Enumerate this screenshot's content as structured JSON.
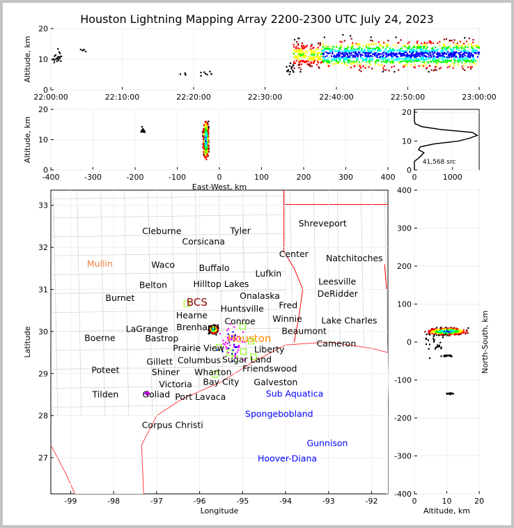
{
  "title": "Houston Lightning Mapping Array 2200-2300 UTC July 24, 2023",
  "chart_data": [
    {
      "id": "time_height",
      "type": "scatter",
      "ylabel": "Altitude, km",
      "ylim": [
        0,
        20
      ],
      "xlim_minutes": [
        0,
        60
      ],
      "xticks": [
        "22:00:00",
        "22:10:00",
        "22:20:00",
        "22:30:00",
        "22:40:00",
        "22:50:00",
        "23:00:00"
      ],
      "yticks": [
        0,
        10,
        20
      ],
      "clusters": [
        {
          "t": [
            34,
            60
          ],
          "alt": 11.5,
          "spread": 2.2,
          "n": 1400,
          "core": true
        },
        {
          "t": [
            0,
            1.5
          ],
          "alt": 11,
          "spread": 2,
          "n": 20
        },
        {
          "t": [
            4,
            5
          ],
          "alt": 13,
          "spread": 0.5,
          "n": 5
        },
        {
          "t": [
            21,
            22.5
          ],
          "alt": 5.5,
          "spread": 0.8,
          "n": 8
        },
        {
          "t": [
            18,
            19
          ],
          "alt": 5,
          "spread": 0.5,
          "n": 4
        },
        {
          "t": [
            33,
            34
          ],
          "alt": 7,
          "spread": 2,
          "n": 15
        }
      ]
    },
    {
      "id": "ew_height",
      "type": "scatter",
      "xlabel": "East-West, km",
      "ylabel": "Altitude, km",
      "xlim": [
        -400,
        400
      ],
      "ylim": [
        0,
        20
      ],
      "xticks": [
        -400,
        -300,
        -200,
        -100,
        0,
        100,
        200,
        300,
        400
      ],
      "yticks": [
        0,
        10,
        20
      ],
      "clusters": [
        {
          "x": -32,
          "xs": 4,
          "alt": 10,
          "spread": 3.5,
          "n": 700,
          "core": true
        },
        {
          "x": -182,
          "xs": 3,
          "alt": 13,
          "spread": 0.7,
          "n": 15
        }
      ]
    },
    {
      "id": "altitude_histogram",
      "type": "line",
      "xlim": [
        0,
        1700
      ],
      "ylim": [
        0,
        21
      ],
      "xticks": [
        0,
        1000
      ],
      "yticks": [
        0,
        10,
        20
      ],
      "annotation": "41,568 src",
      "points": [
        [
          0,
          0
        ],
        [
          0,
          3
        ],
        [
          100,
          4
        ],
        [
          180,
          5
        ],
        [
          250,
          6
        ],
        [
          110,
          7
        ],
        [
          150,
          8
        ],
        [
          500,
          9
        ],
        [
          1150,
          10
        ],
        [
          1450,
          11
        ],
        [
          1650,
          12
        ],
        [
          1520,
          13
        ],
        [
          700,
          14
        ],
        [
          200,
          15
        ],
        [
          20,
          16
        ],
        [
          0,
          17
        ],
        [
          0,
          21
        ]
      ]
    },
    {
      "id": "plan_view",
      "type": "scatter",
      "xlabel": "Longitude",
      "ylabel": "Latitude",
      "xlim": [
        -99.46,
        -91.62
      ],
      "ylim": [
        26.14,
        33.36
      ],
      "xticks": [
        -99,
        -98,
        -97,
        -96,
        -95,
        -94,
        -93,
        -92
      ],
      "yticks": [
        27,
        28,
        29,
        30,
        31,
        32,
        33
      ],
      "clusters": [
        {
          "lon": -95.68,
          "lat": 30.05,
          "s": 0.06,
          "n": 500,
          "core": true
        },
        {
          "lon": -95.2,
          "lat": 29.7,
          "s": 0.25,
          "n": 60
        },
        {
          "lon": -97.22,
          "lat": 28.53,
          "s": 0.03,
          "n": 20
        }
      ],
      "stations": [
        [
          -96.3,
          30.66
        ],
        [
          -95.0,
          30.12
        ],
        [
          -95.3,
          29.5
        ],
        [
          -94.98,
          29.52
        ],
        [
          -95.18,
          29.35
        ],
        [
          -94.75,
          29.4
        ],
        [
          -95.64,
          28.98
        ],
        [
          -95.55,
          29.62
        ],
        [
          -94.8,
          29.77
        ]
      ],
      "labels": [
        {
          "t": "Cleburne",
          "lon": -96.88,
          "lat": 32.4
        },
        {
          "t": "Tyler",
          "lon": -95.05,
          "lat": 32.41
        },
        {
          "t": "Shreveport",
          "lon": -93.14,
          "lat": 32.58
        },
        {
          "t": "Corsicana",
          "lon": -95.91,
          "lat": 32.15
        },
        {
          "t": "Center",
          "lon": -93.81,
          "lat": 31.85
        },
        {
          "t": "Natchitoches",
          "lon": -92.4,
          "lat": 31.75
        },
        {
          "t": "Mullin",
          "lon": -98.32,
          "lat": 31.62,
          "c": "#f08040"
        },
        {
          "t": "Waco",
          "lon": -96.85,
          "lat": 31.6
        },
        {
          "t": "Buffalo",
          "lon": -95.66,
          "lat": 31.52
        },
        {
          "t": "Lufkin",
          "lon": -94.4,
          "lat": 31.39
        },
        {
          "t": "Leesville",
          "lon": -92.8,
          "lat": 31.2
        },
        {
          "t": "Belton",
          "lon": -97.08,
          "lat": 31.12
        },
        {
          "t": "Hilltop Lakes",
          "lon": -95.5,
          "lat": 31.14
        },
        {
          "t": "DeRidder",
          "lon": -92.79,
          "lat": 30.91
        },
        {
          "t": "Hearne",
          "lon": -96.18,
          "lat": 30.94
        },
        {
          "t": "Onalaska",
          "lon": -94.6,
          "lat": 30.86
        },
        {
          "t": "Burnet",
          "lon": -97.85,
          "lat": 30.81
        },
        {
          "t": "Huntsville",
          "lon": -95.01,
          "lat": 30.77
        },
        {
          "t": "BCS",
          "lon": -96.06,
          "lat": 30.69,
          "c": "#8b0000",
          "big": 1
        },
        {
          "t": "Fred",
          "lon": -93.94,
          "lat": 30.64
        },
        {
          "t": "Conroe",
          "lon": -95.06,
          "lat": 30.37
        },
        {
          "t": "Lake Charles",
          "lon": -92.52,
          "lat": 30.27
        },
        {
          "t": "Bastrop",
          "lon": -96.88,
          "lat": 30.16
        },
        {
          "t": "Brenham",
          "lon": -96.08,
          "lat": 30.23
        },
        {
          "t": "Prairie View",
          "lon": -95.15,
          "lat": 30.16
        },
        {
          "t": "Liberty",
          "lon": -94.38,
          "lat": 30.13
        },
        {
          "t": "Beaumont",
          "lon": -93.57,
          "lat": 30.14
        },
        {
          "t": "LaGrange",
          "lon": -96.35,
          "lat": 29.96
        },
        {
          "t": "Columbus",
          "lon": -96.01,
          "lat": 29.76
        },
        {
          "t": "Houston",
          "lon": -94.84,
          "lat": 29.83,
          "c": "#ff8c00",
          "big": 1
        },
        {
          "t": "Winnie",
          "lon": -93.96,
          "lat": 29.88
        },
        {
          "t": "Boerne",
          "lon": -98.32,
          "lat": 29.86
        },
        {
          "t": "Cameron",
          "lon": -92.82,
          "lat": 29.84
        },
        {
          "t": "Sugar Land",
          "lon": -94.9,
          "lat": 29.66
        },
        {
          "t": "Friendswood",
          "lon": -94.37,
          "lat": 29.56
        },
        {
          "t": "Shiner",
          "lon": -96.79,
          "lat": 29.48
        },
        {
          "t": "Wharton",
          "lon": -95.69,
          "lat": 29.36
        },
        {
          "t": "Galveston",
          "lon": -94.23,
          "lat": 29.35
        },
        {
          "t": "Gillett",
          "lon": -96.93,
          "lat": 29.18
        },
        {
          "t": "Poteet",
          "lon": -98.19,
          "lat": 29.1
        },
        {
          "t": "Bay City",
          "lon": -95.5,
          "lat": 29.03
        },
        {
          "t": "Victoria",
          "lon": -96.56,
          "lat": 28.87
        },
        {
          "t": "Goliad",
          "lon": -97.01,
          "lat": 28.73
        },
        {
          "t": "Port Lavaca",
          "lon": -95.98,
          "lat": 28.67
        },
        {
          "t": "Sub Aquatica",
          "lon": -93.79,
          "lat": 28.65,
          "c": "#0000ff"
        },
        {
          "t": "Tilden",
          "lon": -98.19,
          "lat": 28.52
        },
        {
          "t": "Spongebobland",
          "lon": -94.15,
          "lat": 28.05,
          "c": "#0000ff"
        },
        {
          "t": "Corpus Christi",
          "lon": -96.63,
          "lat": 27.79
        },
        {
          "t": "Gunnison",
          "lon": -93.03,
          "lat": 27.36,
          "c": "#0000ff"
        },
        {
          "t": "Hoover-Diana",
          "lon": -93.96,
          "lat": 26.99,
          "c": "#0000ff"
        }
      ]
    },
    {
      "id": "ns_altitude",
      "type": "scatter",
      "xlabel": "Altitude, km",
      "ylabel": "North-South, km",
      "xlim": [
        0,
        20
      ],
      "ylim": [
        -400,
        400
      ],
      "xticks": [
        0,
        10,
        20
      ],
      "yticks": [
        -400,
        -300,
        -200,
        -100,
        0,
        100,
        200,
        300,
        400
      ],
      "clusters": [
        {
          "y": 28,
          "ys": 6,
          "alt": 10,
          "spread": 3.5,
          "n": 600,
          "core": true
        },
        {
          "y": -36,
          "ys": 1.5,
          "alt": 10,
          "spread": 1.5,
          "n": 20
        },
        {
          "y": -136,
          "ys": 1.5,
          "alt": 11,
          "spread": 1,
          "n": 15
        },
        {
          "y": -5,
          "ys": 20,
          "alt": 6,
          "spread": 3,
          "n": 25
        }
      ]
    }
  ],
  "colors": {
    "density": [
      "#0000ff",
      "#00ffff",
      "#00ff00",
      "#ffff00",
      "#ff0000",
      "#8b0000",
      "#000000"
    ],
    "border": "#ff0000",
    "county": "#b0b0b0",
    "station": "#80ff00"
  }
}
